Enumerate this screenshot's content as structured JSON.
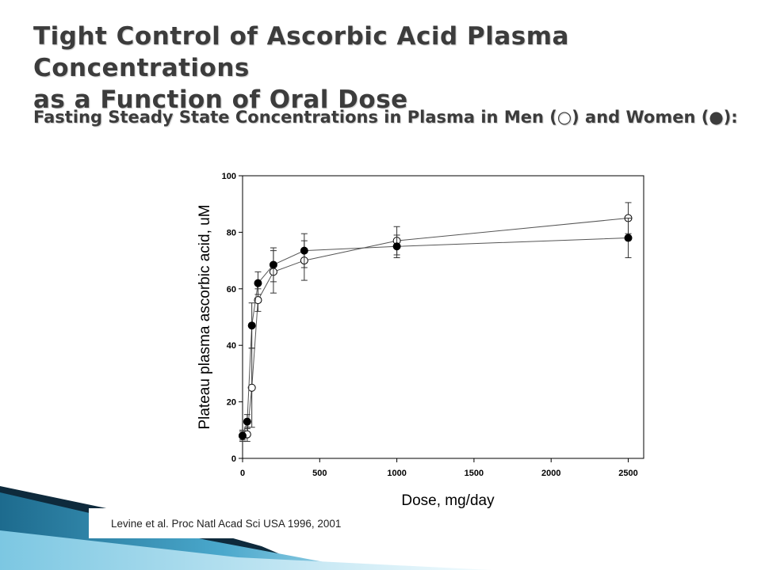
{
  "slide": {
    "title_line1": "Tight Control of Ascorbic Acid Plasma Concentrations",
    "title_line2": "as a Function of Oral Dose",
    "subtitle": "Fasting Steady State Concentrations in Plasma in Men (○) and Women (●):",
    "citation": "Levine et al. Proc Natl Acad Sci USA 1996, 2001"
  },
  "colors": {
    "accent_dark": "#0e2a3c",
    "accent_teal": "#2f86a8",
    "accent_light": "#8ed0e6"
  },
  "chart_data": {
    "type": "scatter",
    "xlabel": "Dose, mg/day",
    "ylabel": "Plateau plasma ascorbic acid, uM",
    "xlim": [
      0,
      2600
    ],
    "ylim": [
      0,
      100
    ],
    "x_ticks": [
      0,
      500,
      1000,
      1500,
      2000,
      2500
    ],
    "y_ticks": [
      0,
      20,
      40,
      60,
      80,
      100
    ],
    "grid": false,
    "series": [
      {
        "name": "Men",
        "marker": "open-circle",
        "x": [
          0,
          30,
          60,
          100,
          200,
          400,
          1000,
          2500
        ],
        "y": [
          8,
          8.5,
          25,
          56,
          66,
          70,
          77,
          85
        ],
        "err": [
          2,
          2.5,
          14,
          4,
          7.5,
          7,
          5,
          5.5
        ]
      },
      {
        "name": "Women",
        "marker": "filled-circle",
        "x": [
          0,
          30,
          60,
          100,
          200,
          400,
          1000,
          2500
        ],
        "y": [
          8,
          13,
          47,
          62,
          68.5,
          73.5,
          75,
          78
        ],
        "err": [
          1.5,
          2.5,
          8,
          4,
          6,
          6,
          4,
          7
        ]
      }
    ]
  }
}
